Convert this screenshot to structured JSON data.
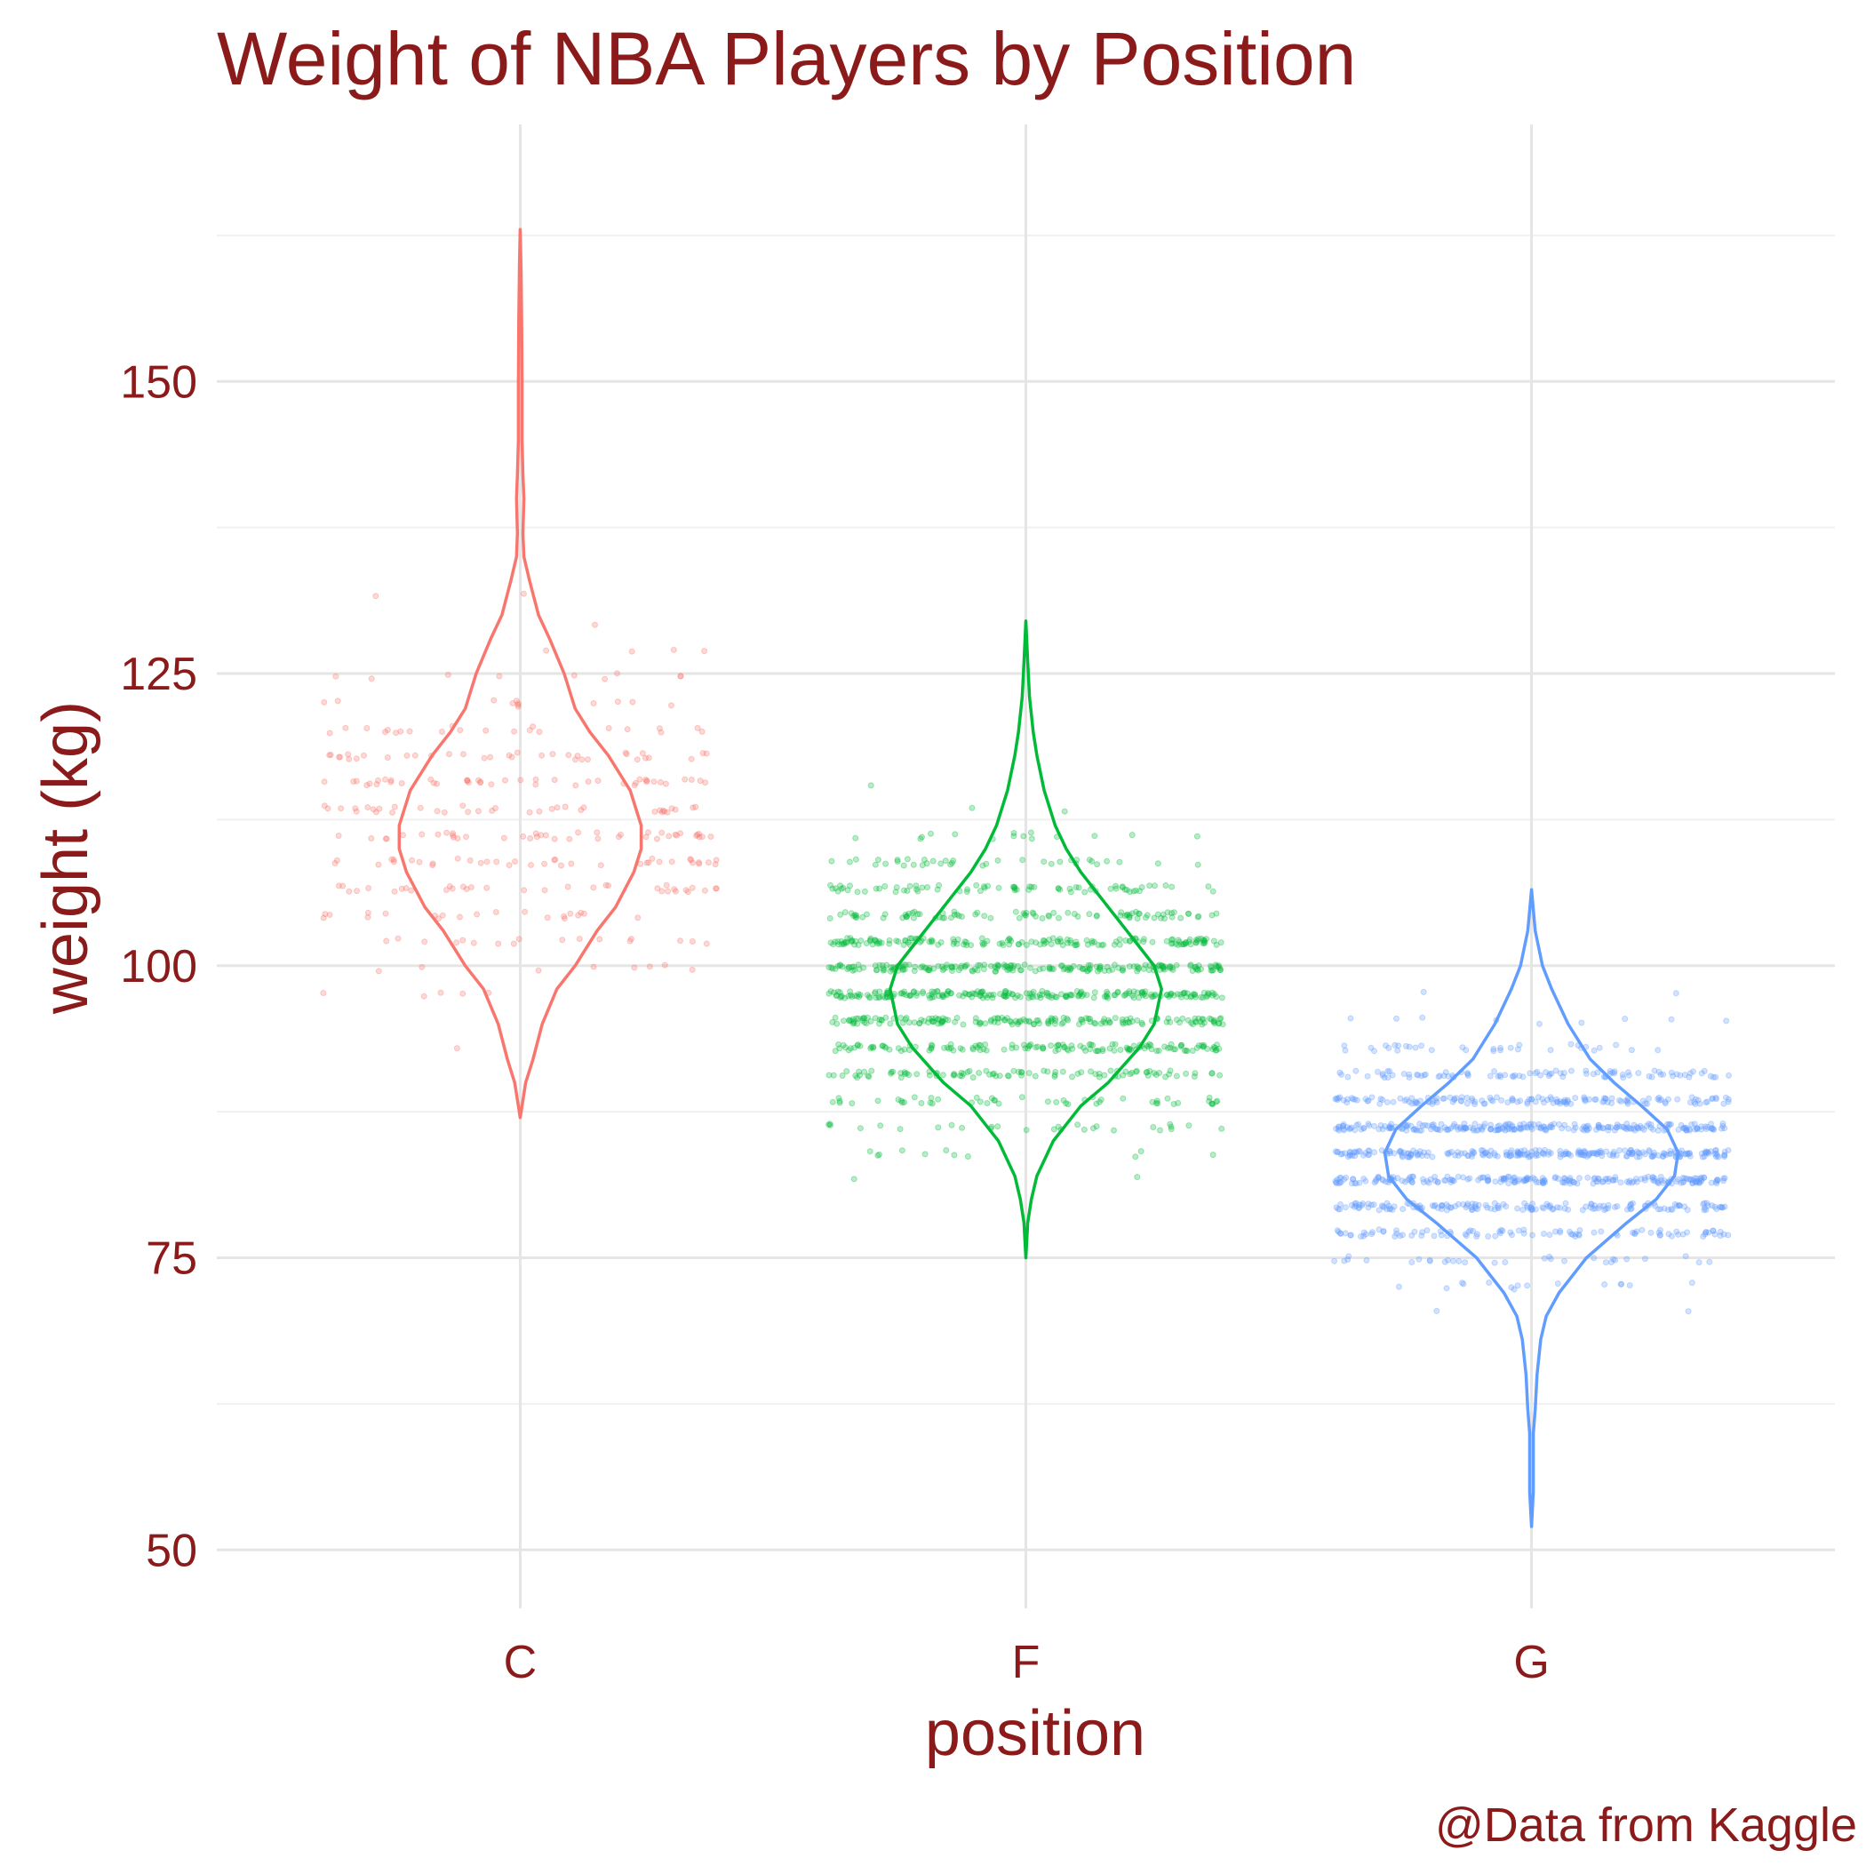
{
  "chart_data": {
    "type": "violin",
    "title": "Weight of NBA Players by Position",
    "xlabel": "position",
    "ylabel": "weight (kg)",
    "caption": "@Data from Kaggle",
    "ylim": [
      45,
      172
    ],
    "y_ticks": [
      50,
      75,
      100,
      125,
      150
    ],
    "categories": [
      "C",
      "F",
      "G"
    ],
    "grid": true,
    "legend": "none",
    "series": [
      {
        "category": "C",
        "color": "#F8766D",
        "density": [
          [
            87,
            0.0
          ],
          [
            88,
            0.01
          ],
          [
            90,
            0.03
          ],
          [
            92,
            0.07
          ],
          [
            95,
            0.12
          ],
          [
            98,
            0.2
          ],
          [
            100,
            0.3
          ],
          [
            103,
            0.42
          ],
          [
            105,
            0.52
          ],
          [
            108,
            0.62
          ],
          [
            110,
            0.66
          ],
          [
            112,
            0.66
          ],
          [
            115,
            0.6
          ],
          [
            118,
            0.48
          ],
          [
            120,
            0.38
          ],
          [
            122,
            0.3
          ],
          [
            125,
            0.24
          ],
          [
            128,
            0.16
          ],
          [
            130,
            0.1
          ],
          [
            133,
            0.05
          ],
          [
            135,
            0.02
          ],
          [
            137,
            0.015
          ],
          [
            140,
            0.02
          ],
          [
            142,
            0.015
          ],
          [
            145,
            0.01
          ],
          [
            150,
            0.01
          ],
          [
            155,
            0.008
          ],
          [
            160,
            0.004
          ],
          [
            163,
            0.0
          ]
        ],
        "n_points": 330,
        "mean": 112,
        "sd": 10,
        "range": [
          86,
          163
        ]
      },
      {
        "category": "F",
        "color": "#00BA38",
        "density": [
          [
            75,
            0.0
          ],
          [
            78,
            0.01
          ],
          [
            80,
            0.03
          ],
          [
            82,
            0.06
          ],
          [
            85,
            0.15
          ],
          [
            88,
            0.3
          ],
          [
            90,
            0.45
          ],
          [
            93,
            0.62
          ],
          [
            95,
            0.7
          ],
          [
            98,
            0.74
          ],
          [
            100,
            0.7
          ],
          [
            102,
            0.6
          ],
          [
            105,
            0.45
          ],
          [
            108,
            0.3
          ],
          [
            110,
            0.22
          ],
          [
            112,
            0.16
          ],
          [
            115,
            0.1
          ],
          [
            118,
            0.06
          ],
          [
            120,
            0.04
          ],
          [
            123,
            0.02
          ],
          [
            126,
            0.01
          ],
          [
            129.5,
            0.0
          ]
        ],
        "n_points": 1300,
        "mean": 98,
        "sd": 8,
        "range": [
          75,
          129
        ]
      },
      {
        "category": "G",
        "color": "#619CFF",
        "density": [
          [
            52,
            0.0
          ],
          [
            55,
            0.01
          ],
          [
            60,
            0.01
          ],
          [
            62,
            0.02
          ],
          [
            65,
            0.03
          ],
          [
            68,
            0.05
          ],
          [
            70,
            0.08
          ],
          [
            72,
            0.15
          ],
          [
            75,
            0.3
          ],
          [
            78,
            0.52
          ],
          [
            80,
            0.68
          ],
          [
            82,
            0.78
          ],
          [
            84,
            0.8
          ],
          [
            86,
            0.74
          ],
          [
            88,
            0.6
          ],
          [
            90,
            0.45
          ],
          [
            92,
            0.32
          ],
          [
            95,
            0.2
          ],
          [
            98,
            0.11
          ],
          [
            100,
            0.06
          ],
          [
            103,
            0.02
          ],
          [
            106.5,
            0.0
          ]
        ],
        "n_points": 1300,
        "mean": 84,
        "sd": 6.5,
        "range": [
          52,
          106
        ]
      }
    ]
  }
}
